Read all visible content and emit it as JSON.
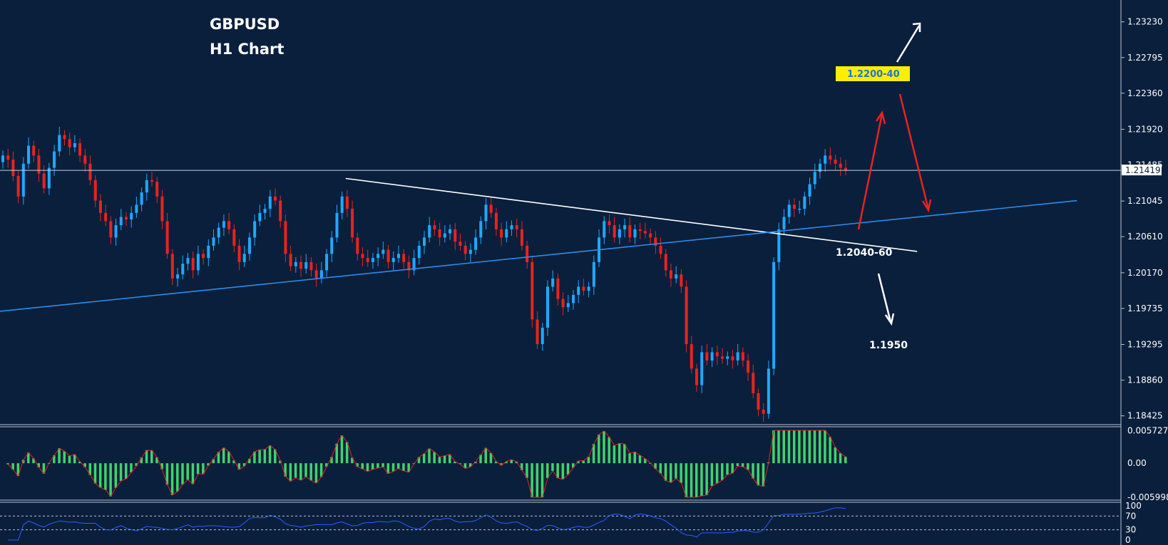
{
  "chart_data": {
    "type": "candlestick",
    "title": "GBPUSD",
    "subtitle": "H1 Chart",
    "colors": {
      "background": "#0a1f3c",
      "bull": "#1fa9ff",
      "bear": "#e8231f",
      "trendline": "#ffffff",
      "support": "#2b8ee8",
      "macd_hist": "#3fd46a",
      "macd_signal": "#e8231f",
      "rsi": "#2f5bff",
      "annotation_box": "#ffee00",
      "arrow_red": "#e8231f",
      "arrow_white": "#ffffff"
    },
    "price_axis": {
      "ticks": [
        "1.23230",
        "1.22795",
        "1.22360",
        "1.21920",
        "1.21485",
        "1.21045",
        "1.20610",
        "1.20170",
        "1.19735",
        "1.19295",
        "1.18860",
        "1.18425"
      ],
      "ylim": [
        1.1837,
        1.2341
      ],
      "current_price": "1.21419"
    },
    "series_close": [
      1.216,
      1.2155,
      1.2135,
      1.211,
      1.215,
      1.2172,
      1.216,
      1.2138,
      1.212,
      1.2145,
      1.2165,
      1.2185,
      1.218,
      1.217,
      1.2175,
      1.216,
      1.215,
      1.213,
      1.2105,
      1.209,
      1.208,
      1.206,
      1.2075,
      1.2085,
      1.2082,
      1.209,
      1.21,
      1.2115,
      1.213,
      1.2128,
      1.211,
      1.208,
      1.204,
      1.201,
      1.2015,
      1.2028,
      1.2035,
      1.202,
      1.204,
      1.2035,
      1.205,
      1.206,
      1.2072,
      1.208,
      1.207,
      1.205,
      1.203,
      1.204,
      1.206,
      1.208,
      1.209,
      1.2095,
      1.211,
      1.2105,
      1.208,
      1.204,
      1.2025,
      1.203,
      1.2022,
      1.203,
      1.202,
      1.201,
      1.202,
      1.204,
      1.206,
      1.209,
      1.211,
      1.2095,
      1.206,
      1.204,
      1.2035,
      1.203,
      1.2035,
      1.204,
      1.2045,
      1.203,
      1.2035,
      1.204,
      1.203,
      1.202,
      1.2035,
      1.205,
      1.206,
      1.2075,
      1.207,
      1.206,
      1.2065,
      1.207,
      1.2055,
      1.205,
      1.204,
      1.2045,
      1.206,
      1.208,
      1.21,
      1.209,
      1.207,
      1.206,
      1.207,
      1.2075,
      1.207,
      1.205,
      1.203,
      1.196,
      1.193,
      1.195,
      1.2,
      1.201,
      1.1985,
      1.1975,
      1.198,
      1.199,
      1.2,
      1.1995,
      1.2,
      1.203,
      1.206,
      1.208,
      1.2075,
      1.206,
      1.207,
      1.2075,
      1.206,
      1.207,
      1.2068,
      1.2065,
      1.206,
      1.205,
      1.204,
      1.202,
      1.201,
      1.2015,
      1.2,
      1.193,
      1.19,
      1.188,
      1.192,
      1.191,
      1.192,
      1.1915,
      1.1912,
      1.1915,
      1.191,
      1.192,
      1.191,
      1.1895,
      1.187,
      1.185,
      1.1845,
      1.19,
      1.203,
      1.207,
      1.2085,
      1.21,
      1.2095,
      1.2095,
      1.211,
      1.2125,
      1.214,
      1.215,
      1.216,
      1.2155,
      1.215,
      1.2145,
      1.2142
    ],
    "trend_lines": [
      {
        "name": "resistance",
        "from": [
          0.3084,
          1.2132
        ],
        "to": [
          0.8182,
          1.2043
        ]
      },
      {
        "name": "support",
        "from": [
          0.0,
          1.197
        ],
        "to": [
          0.9608,
          1.2105
        ]
      }
    ],
    "annotations": [
      {
        "text": "1.2200-40",
        "boxed": true
      },
      {
        "text": "1.2040-60",
        "boxed": false
      },
      {
        "text": "1.1950",
        "boxed": false
      }
    ],
    "macd_axis": {
      "ticks": [
        "0.005727",
        "0.00",
        "-0.005998"
      ],
      "ylim": [
        -0.006,
        0.0058
      ]
    },
    "rsi_axis": {
      "ticks": [
        "100",
        "70",
        "30",
        "0"
      ],
      "levels": [
        70,
        30
      ]
    }
  }
}
